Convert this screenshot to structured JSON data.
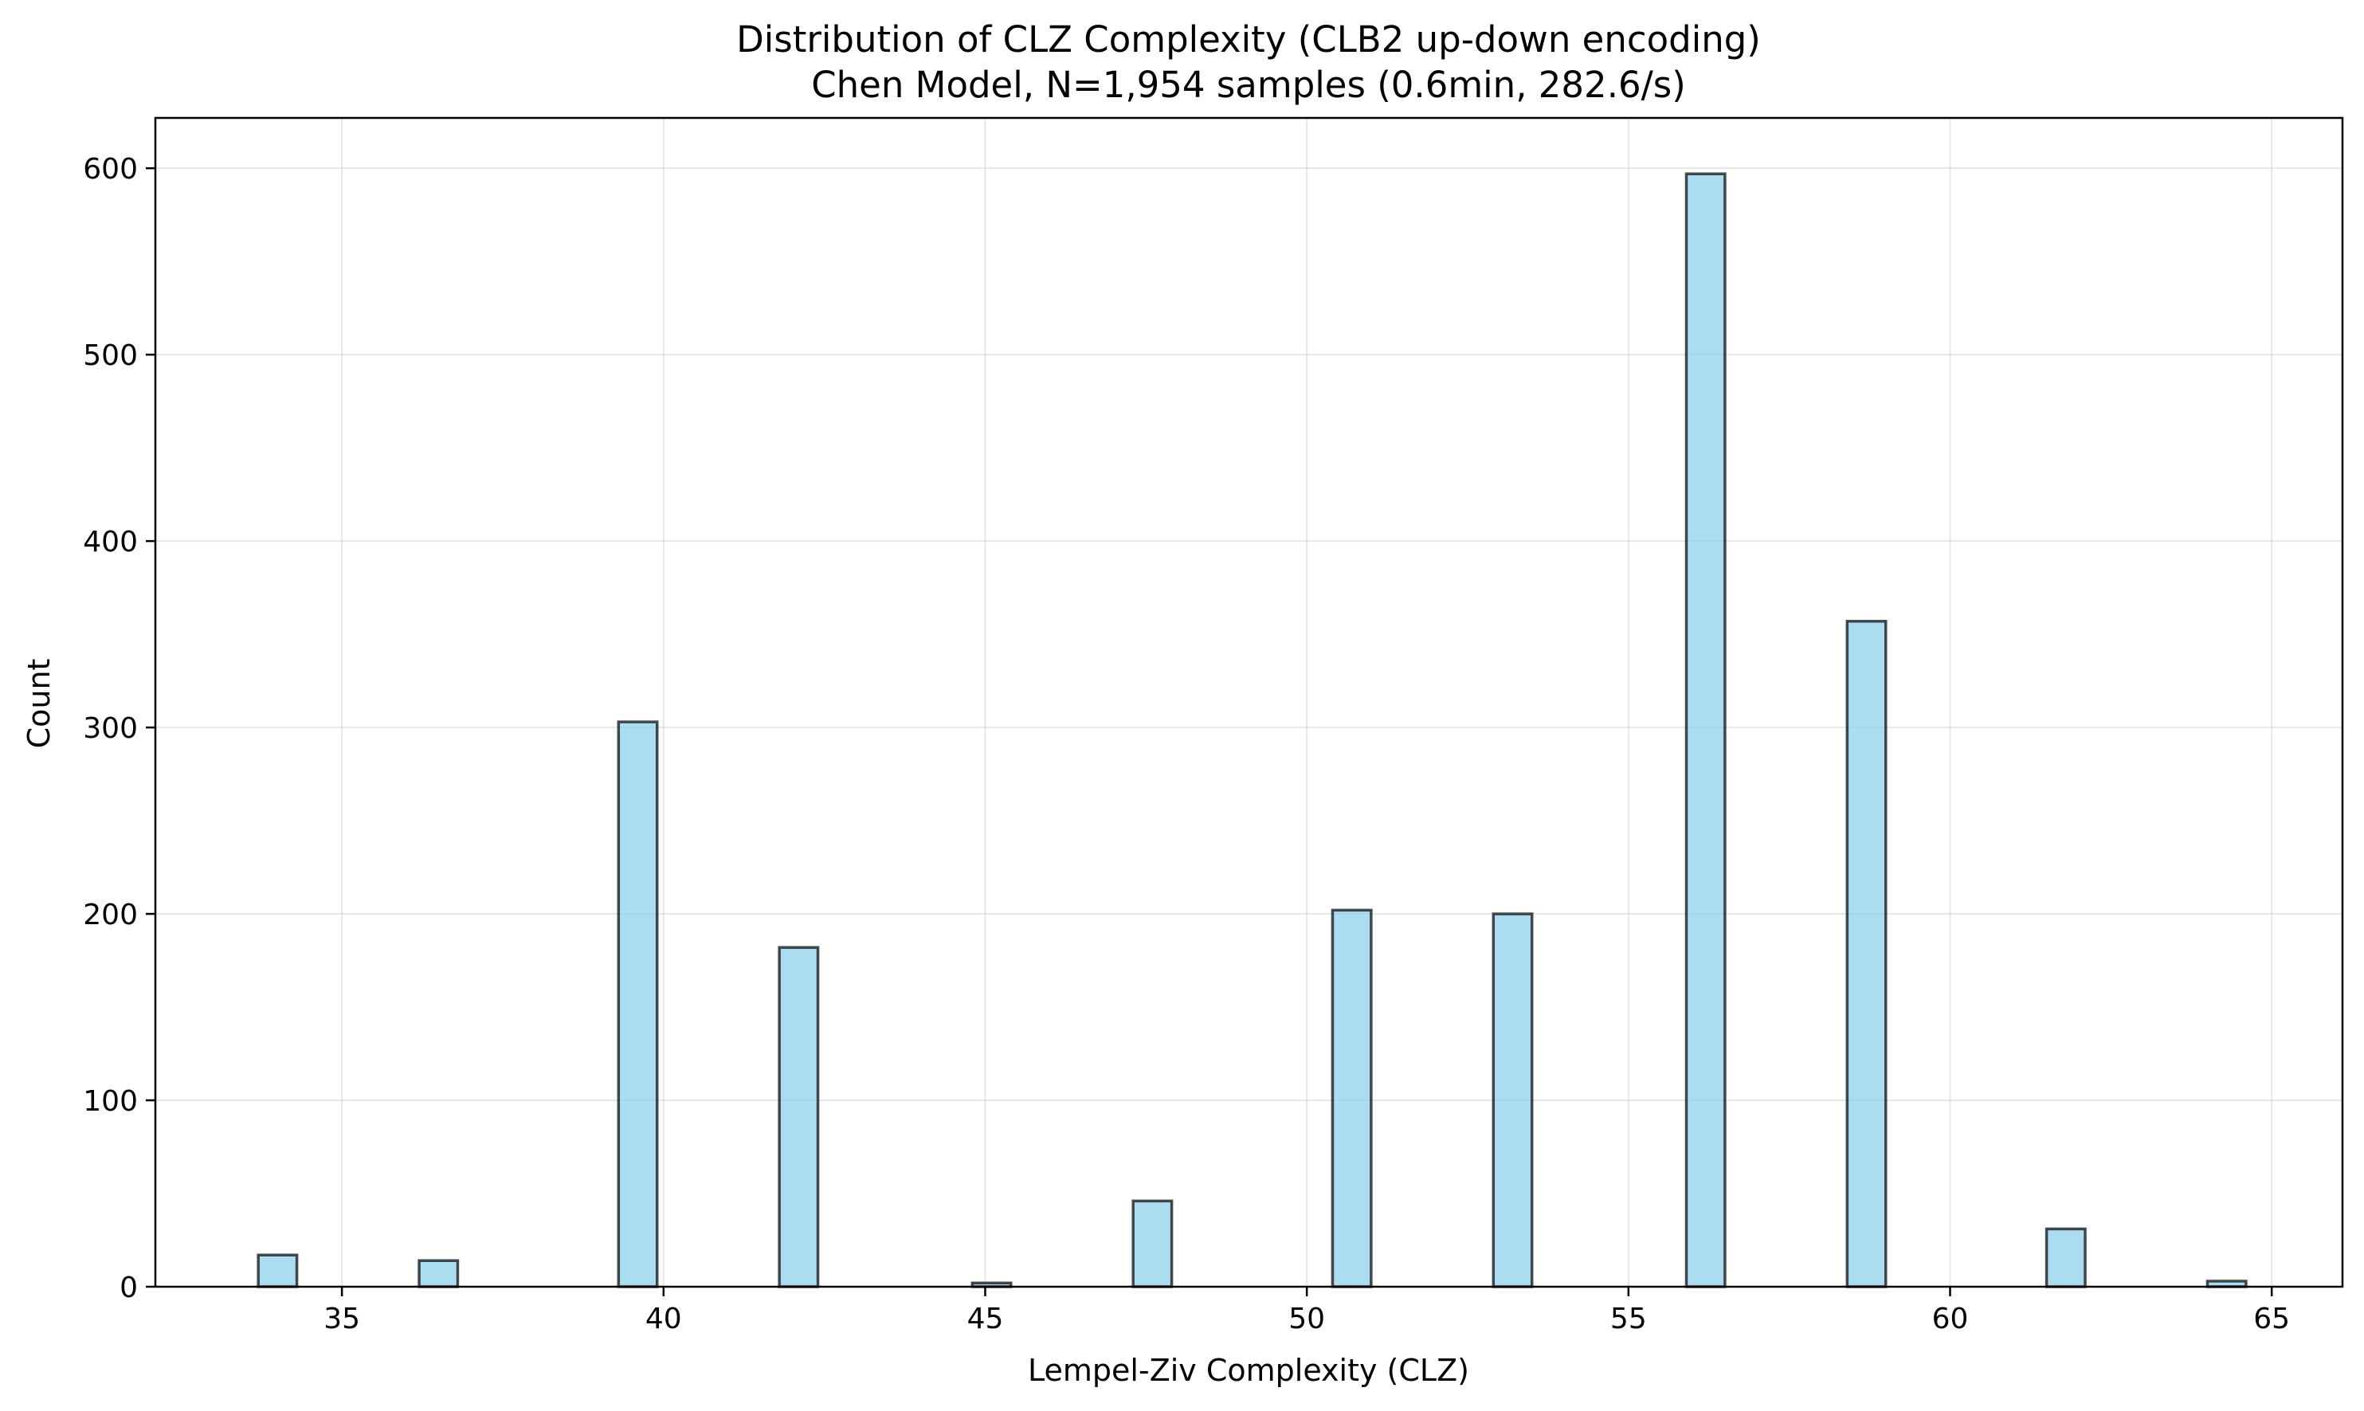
{
  "chart_data": {
    "type": "bar",
    "title": "Distribution of CLZ Complexity (CLB2 up-down encoding)",
    "subtitle": "Chen Model, N=1,954 samples (0.6min, 282.6/s)",
    "xlabel": "Lempel-Ziv Complexity (CLZ)",
    "ylabel": "Count",
    "xlim": [
      32.1,
      66.1
    ],
    "ylim": [
      0,
      627
    ],
    "grid": true,
    "bin_width": 0.6,
    "xticks": [
      35,
      40,
      45,
      50,
      55,
      60,
      65
    ],
    "yticks": [
      0,
      100,
      200,
      300,
      400,
      500,
      600
    ],
    "x": [
      34.0,
      36.5,
      39.6,
      42.1,
      45.1,
      47.6,
      50.7,
      53.2,
      56.2,
      58.7,
      61.8,
      64.3
    ],
    "values": [
      17,
      14,
      303,
      182,
      2,
      46,
      202,
      200,
      597,
      357,
      31,
      3
    ]
  }
}
